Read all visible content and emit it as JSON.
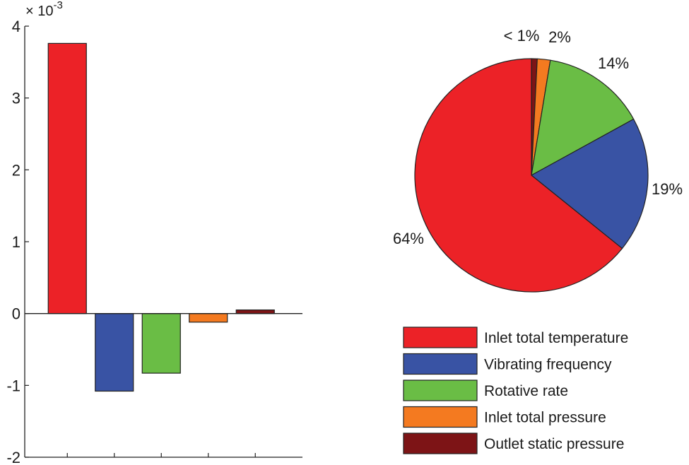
{
  "chart_data": [
    {
      "type": "bar",
      "categories": [
        "Inlet total temperature",
        "Vibrating frequency",
        "Rotative rate",
        "Inlet total pressure",
        "Outlet static pressure"
      ],
      "values": [
        0.00376,
        -0.00108,
        -0.00083,
        -0.00012,
        5e-05
      ],
      "colors": [
        "#ec2227",
        "#3953a4",
        "#6abd45",
        "#f47a20",
        "#7d1416"
      ],
      "ylim": [
        -0.002,
        0.004
      ],
      "yticks": [
        -2,
        -1,
        0,
        1,
        2,
        3,
        4
      ],
      "ytick_labels": [
        "-2",
        "-1",
        "0",
        "1",
        "2",
        "3",
        "4"
      ],
      "exponent_label": {
        "base": "× 10",
        "power": "-3"
      },
      "grid": false,
      "title": "",
      "xlabel": "",
      "ylabel": ""
    },
    {
      "type": "pie",
      "slices": [
        {
          "name": "Outlet static pressure",
          "value": 0.8,
          "label": "< 1%",
          "color": "#7d1416"
        },
        {
          "name": "Inlet total pressure",
          "value": 1.8,
          "label": "2%",
          "color": "#f47a20"
        },
        {
          "name": "Rotative rate",
          "value": 14.4,
          "label": "14%",
          "color": "#6abd45"
        },
        {
          "name": "Vibrating frequency",
          "value": 18.8,
          "label": "19%",
          "color": "#3953a4"
        },
        {
          "name": "Inlet total temperature",
          "value": 64.2,
          "label": "64%",
          "color": "#ec2227"
        }
      ],
      "legend": {
        "placement": "bottom-right",
        "entries": [
          {
            "label": "Inlet total temperature",
            "color": "#ec2227"
          },
          {
            "label": "Vibrating frequency",
            "color": "#3953a4"
          },
          {
            "label": "Rotative rate",
            "color": "#6abd45"
          },
          {
            "label": "Inlet total pressure",
            "color": "#f47a20"
          },
          {
            "label": "Outlet static pressure",
            "color": "#7d1416"
          }
        ]
      }
    }
  ]
}
